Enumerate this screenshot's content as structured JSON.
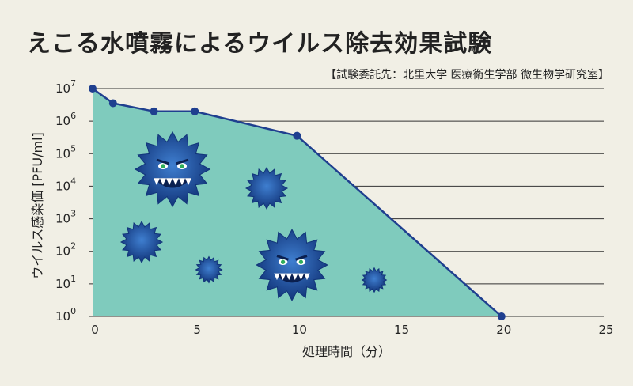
{
  "chart_data": {
    "type": "area",
    "title": "えこる水噴霧によるウイルス除去効果試験",
    "subtitle": "【試験委託先：北里大学 医療衛生学部 微生物学研究室】",
    "xlabel": "処理時間（分）",
    "ylabel": "ウイルス感染価 [PFU/ml]",
    "x_ticks": [
      "0",
      "5",
      "10",
      "15",
      "20",
      "25"
    ],
    "y_ticks": [
      {
        "base": "10",
        "exp": "0"
      },
      {
        "base": "10",
        "exp": "1"
      },
      {
        "base": "10",
        "exp": "2"
      },
      {
        "base": "10",
        "exp": "3"
      },
      {
        "base": "10",
        "exp": "4"
      },
      {
        "base": "10",
        "exp": "5"
      },
      {
        "base": "10",
        "exp": "6"
      },
      {
        "base": "10",
        "exp": "7"
      }
    ],
    "xlim": [
      0,
      25
    ],
    "ylim_log10": [
      0,
      7
    ],
    "y_scale": "log",
    "grid": "horizontal",
    "series": [
      {
        "x": [
          0,
          1,
          3,
          5,
          10,
          20
        ],
        "y_log10": [
          7.0,
          6.55,
          6.3,
          6.3,
          5.55,
          0.0
        ]
      }
    ],
    "colors": {
      "fill": "#7fcbbd",
      "line": "#1f3f8f",
      "marker": "#1f3f8f",
      "grid": "#333333",
      "virus_dark": "#12357a",
      "virus_light": "#3f7fd0"
    },
    "decorations": [
      {
        "kind": "virus-face-icon"
      },
      {
        "kind": "virus-icon"
      },
      {
        "kind": "virus-icon"
      },
      {
        "kind": "virus-icon"
      },
      {
        "kind": "virus-face-icon"
      },
      {
        "kind": "virus-icon"
      }
    ]
  }
}
